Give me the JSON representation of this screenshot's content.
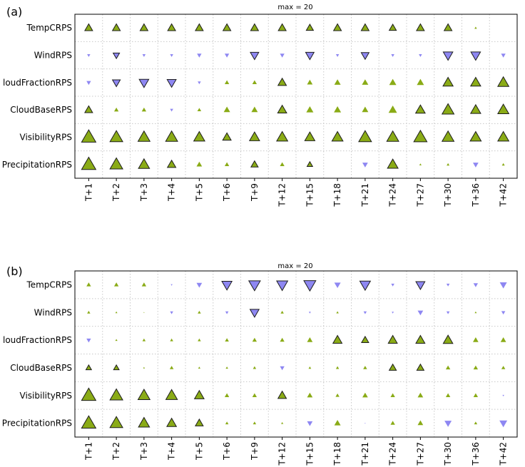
{
  "chart_data": [
    {
      "type": "glyph-matrix",
      "panel_label": "(a)",
      "max_label": "max = 20",
      "max_value": 20,
      "rows": [
        "TempCRPS",
        "WindRPS",
        "loudFractionRPS",
        "CloudBaseRPS",
        "VisibilityRPS",
        "PrecipitationRPS"
      ],
      "columns": [
        "T+1",
        "T+2",
        "T+3",
        "T+4",
        "T+5",
        "T+6",
        "T+9",
        "T+12",
        "T+15",
        "T+18",
        "T+21",
        "T+24",
        "T+27",
        "T+30",
        "T+36",
        "T+42"
      ],
      "values": [
        [
          6,
          6,
          6,
          6,
          6,
          6,
          6,
          6,
          5,
          6,
          6,
          5,
          6,
          6,
          0.6,
          0
        ],
        [
          -1,
          -4,
          -1,
          -1,
          -2,
          -2,
          -7,
          -2,
          -7,
          -1,
          -6,
          -1,
          -1,
          -9,
          -9,
          -2
        ],
        [
          -2,
          -6,
          -9,
          -8,
          -1,
          2,
          2,
          7,
          3,
          4,
          4,
          5,
          5,
          10,
          10,
          12
        ],
        [
          6,
          2,
          2,
          -1,
          1.5,
          4,
          4,
          8,
          5,
          5,
          4,
          7,
          9,
          14,
          10,
          12
        ],
        [
          20,
          16,
          14,
          14,
          12,
          7,
          10,
          12,
          10,
          12,
          16,
          14,
          17,
          14,
          12,
          12
        ],
        [
          20,
          16,
          12,
          7,
          3,
          2,
          5,
          2,
          3,
          0,
          -3,
          11,
          0.5,
          0.8,
          -3,
          0.8
        ]
      ],
      "outlined": [
        [
          true,
          true,
          true,
          true,
          true,
          true,
          true,
          true,
          true,
          true,
          true,
          true,
          true,
          true,
          false,
          false
        ],
        [
          false,
          true,
          false,
          false,
          false,
          false,
          true,
          false,
          true,
          false,
          true,
          false,
          false,
          true,
          true,
          false
        ],
        [
          false,
          true,
          true,
          true,
          false,
          false,
          false,
          true,
          false,
          false,
          false,
          false,
          false,
          true,
          true,
          true
        ],
        [
          true,
          false,
          false,
          false,
          false,
          false,
          false,
          true,
          false,
          false,
          false,
          false,
          true,
          true,
          true,
          true
        ],
        [
          true,
          true,
          true,
          true,
          true,
          true,
          true,
          true,
          true,
          true,
          true,
          true,
          true,
          true,
          true,
          true
        ],
        [
          true,
          true,
          true,
          true,
          false,
          false,
          true,
          false,
          true,
          false,
          false,
          true,
          false,
          false,
          false,
          false
        ]
      ]
    },
    {
      "type": "glyph-matrix",
      "panel_label": "(b)",
      "max_label": "max = 20",
      "max_value": 20,
      "rows": [
        "TempCRPS",
        "WindRPS",
        "loudFractionRPS",
        "CloudBaseRPS",
        "VisibilityRPS",
        "PrecipitationRPS"
      ],
      "columns": [
        "T+1",
        "T+2",
        "T+3",
        "T+4",
        "T+5",
        "T+6",
        "T+9",
        "T+12",
        "T+15",
        "T+18",
        "T+21",
        "T+24",
        "T+27",
        "T+30",
        "T+36",
        "T+42"
      ],
      "values": [
        [
          2,
          2,
          2,
          -0.3,
          -3,
          -10,
          -13,
          -12,
          -14,
          -4,
          -11,
          -1,
          -8,
          -1,
          -2,
          -5
        ],
        [
          1,
          0.4,
          0.1,
          -1,
          1,
          -1,
          -8,
          1,
          -0.4,
          0.6,
          -1,
          -0.4,
          -3,
          -1,
          0.4,
          -1.5
        ],
        [
          -2,
          0.5,
          1,
          1,
          1,
          1.5,
          2,
          2,
          3,
          8,
          5,
          8,
          8,
          9,
          3,
          3
        ],
        [
          3,
          3,
          0.3,
          1.5,
          0.5,
          0.6,
          1,
          -2,
          0.7,
          1,
          1.5,
          5,
          5,
          2,
          2,
          1.5
        ],
        [
          20,
          16,
          14,
          13,
          9,
          2,
          2,
          7,
          3,
          1.5,
          3,
          2,
          3,
          2,
          2,
          -0.3
        ],
        [
          20,
          16,
          12,
          9,
          6,
          1,
          1,
          0.5,
          -3,
          4,
          -0.1,
          2,
          3,
          -5,
          1,
          -6
        ]
      ],
      "outlined": [
        [
          false,
          false,
          false,
          false,
          false,
          true,
          true,
          true,
          true,
          false,
          true,
          false,
          true,
          false,
          false,
          false
        ],
        [
          false,
          false,
          false,
          false,
          false,
          false,
          true,
          false,
          false,
          false,
          false,
          false,
          false,
          false,
          false,
          false
        ],
        [
          false,
          false,
          false,
          false,
          false,
          false,
          false,
          false,
          false,
          true,
          true,
          true,
          true,
          true,
          false,
          false
        ],
        [
          true,
          true,
          false,
          false,
          false,
          false,
          false,
          false,
          false,
          false,
          false,
          true,
          true,
          false,
          false,
          false
        ],
        [
          true,
          true,
          true,
          true,
          true,
          false,
          false,
          true,
          false,
          false,
          false,
          false,
          false,
          false,
          false,
          false
        ],
        [
          true,
          true,
          true,
          true,
          true,
          false,
          false,
          false,
          false,
          false,
          false,
          false,
          false,
          false,
          false,
          false
        ]
      ]
    }
  ],
  "colors": {
    "positive": "#8aab16",
    "negative": "#8e87f2",
    "outline": "#1c1c1c",
    "grid": "#c8c8c8"
  }
}
